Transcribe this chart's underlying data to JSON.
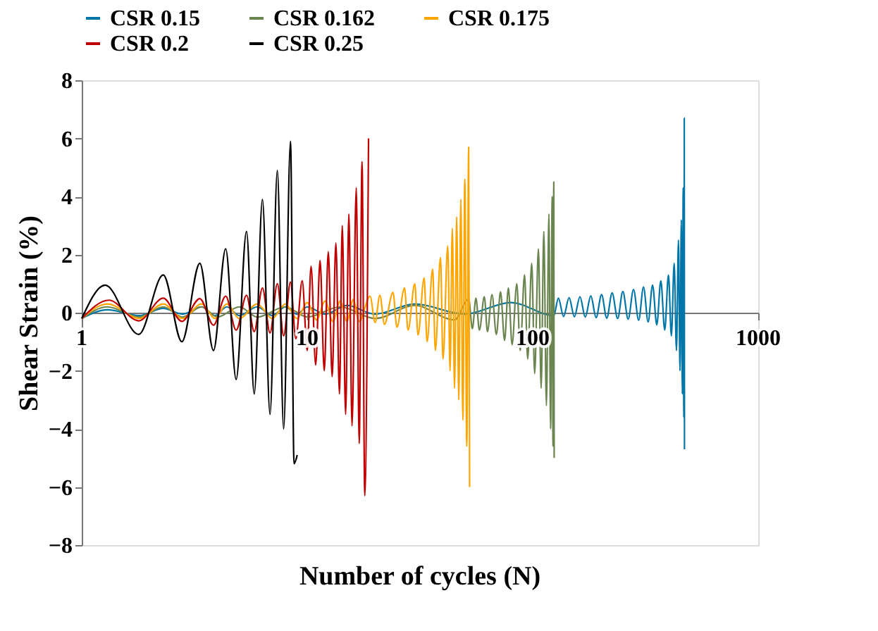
{
  "chart_data": {
    "type": "line",
    "xlabel": "Number of cycles (N)",
    "ylabel": "Shear Strain (%)",
    "log": "x",
    "legend": "top",
    "xlim": [
      1,
      1000
    ],
    "xticks": [
      1,
      10,
      100,
      1000
    ],
    "ylim": [
      -8,
      8
    ],
    "yticks": [
      -8,
      -6,
      -4,
      -2,
      0,
      2,
      4,
      6,
      8
    ],
    "series": [
      {
        "name": "CSR 0.15",
        "color": "#0076a8",
        "x": [
          1,
          1.3,
          1.8,
          2.3,
          2.8,
          3.4,
          3.9,
          4.4,
          5,
          6,
          7,
          8,
          9,
          10,
          12,
          15,
          20,
          30,
          50,
          80,
          124,
          130,
          137,
          145,
          153,
          162,
          171,
          181,
          191,
          202,
          213,
          225,
          238,
          251,
          265,
          280,
          295,
          310,
          325,
          340,
          355,
          370,
          385,
          400,
          412,
          424,
          434,
          443,
          450,
          456,
          461,
          465,
          468,
          470,
          471
        ],
        "values": [
          -0.2,
          0.1,
          -0.1,
          0.15,
          -0.05,
          0.2,
          -0.1,
          0.2,
          -0.1,
          0.2,
          -0.1,
          0.2,
          -0.05,
          0.2,
          -0.05,
          0.25,
          -0.05,
          0.3,
          -0.05,
          0.35,
          -0.1,
          0.5,
          -0.13,
          0.52,
          -0.14,
          0.55,
          -0.15,
          0.58,
          -0.17,
          0.62,
          -0.19,
          0.68,
          -0.2,
          0.73,
          -0.22,
          0.8,
          -0.26,
          0.88,
          -0.32,
          0.95,
          -0.42,
          1.1,
          -0.6,
          1.3,
          -0.8,
          1.7,
          -1.3,
          2.5,
          -2.0,
          3.2,
          -2.8,
          4.3,
          -3.6,
          6.7,
          -4.7
        ]
      },
      {
        "name": "CSR 0.162",
        "color": "#6b8550",
        "x": [
          1,
          1.3,
          1.8,
          2.3,
          2.8,
          3.4,
          4,
          5,
          6,
          8,
          10,
          14,
          20,
          30,
          45,
          52,
          54,
          56,
          58,
          61,
          63,
          66,
          69,
          72,
          75,
          78,
          81,
          85,
          88,
          92,
          95,
          99,
          102,
          106,
          109,
          112,
          115,
          118,
          120,
          122,
          123,
          124,
          124.5
        ],
        "values": [
          -0.2,
          0.2,
          -0.15,
          0.2,
          -0.15,
          0.2,
          -0.15,
          0.2,
          -0.15,
          0.2,
          -0.15,
          0.2,
          -0.2,
          0.25,
          -0.25,
          0.47,
          -0.55,
          0.5,
          -0.6,
          0.55,
          -0.65,
          0.62,
          -0.75,
          0.72,
          -0.95,
          0.85,
          -1.1,
          1.0,
          -1.3,
          1.3,
          -1.6,
          1.7,
          -2.1,
          2.2,
          -2.6,
          2.8,
          -3.2,
          3.4,
          -4.0,
          4.0,
          -4.6,
          4.5,
          -5.0
        ]
      },
      {
        "name": "CSR 0.175",
        "color": "#ffa500",
        "x": [
          1,
          1.3,
          1.8,
          2.3,
          2.8,
          3.4,
          3.9,
          4.4,
          5,
          6,
          7,
          8,
          9,
          10,
          11,
          12,
          13,
          14,
          15,
          16,
          17,
          19,
          20,
          21,
          22,
          24,
          25,
          27,
          28,
          30,
          31,
          33,
          34,
          36,
          37,
          39,
          40,
          42,
          43,
          44,
          45,
          46,
          47,
          48,
          49,
          50,
          51,
          52,
          52.5
        ],
        "values": [
          -0.2,
          0.3,
          -0.2,
          0.3,
          -0.2,
          0.3,
          -0.2,
          0.3,
          -0.2,
          0.3,
          -0.2,
          0.3,
          -0.2,
          0.35,
          -0.25,
          0.4,
          -0.3,
          0.4,
          -0.3,
          0.45,
          -0.3,
          0.57,
          -0.34,
          0.6,
          -0.4,
          0.7,
          -0.5,
          0.85,
          -0.6,
          1.0,
          -0.77,
          1.2,
          -1.0,
          1.5,
          -1.3,
          1.9,
          -1.6,
          2.3,
          -2.0,
          2.9,
          -2.6,
          3.3,
          -3.0,
          3.9,
          -3.7,
          4.6,
          -4.6,
          5.7,
          -6.0
        ]
      },
      {
        "name": "CSR 0.2",
        "color": "#c00000",
        "x": [
          1,
          1.32,
          1.79,
          2.3,
          2.78,
          3.34,
          3.84,
          4.35,
          4.84,
          5.38,
          5.82,
          6.33,
          6.84,
          7.37,
          7.86,
          8.43,
          8.9,
          9.5,
          10,
          10.4,
          10.9,
          11.4,
          11.9,
          12.4,
          12.9,
          13.4,
          13.9,
          14.3,
          14.8,
          15.3,
          15.8,
          16.5,
          17,
          17.5,
          18,
          18.7
        ],
        "values": [
          -0.2,
          0.43,
          -0.28,
          0.5,
          -0.3,
          0.48,
          -0.43,
          0.57,
          -0.6,
          0.6,
          -0.65,
          0.85,
          -0.7,
          1.0,
          -0.8,
          1.06,
          -0.9,
          1.1,
          -1.3,
          1.6,
          -1.8,
          1.8,
          -2.0,
          2.1,
          -2.2,
          2.4,
          -2.8,
          3.0,
          -3.5,
          3.4,
          -3.9,
          4.3,
          -4.5,
          5.2,
          -6.3,
          6.0
        ]
      },
      {
        "name": "CSR 0.25",
        "color": "#000000",
        "x": [
          1,
          1.27,
          1.79,
          2.3,
          2.78,
          3.34,
          3.84,
          4.35,
          4.84,
          5.38,
          5.82,
          6.33,
          6.84,
          7.37,
          7.86,
          8.43,
          8.74,
          9.03
        ],
        "values": [
          -0.2,
          0.95,
          -0.75,
          1.3,
          -1.0,
          1.7,
          -1.3,
          2.2,
          -2.3,
          2.8,
          -2.8,
          3.9,
          -3.5,
          4.9,
          -4.0,
          5.9,
          -5.2,
          -4.9
        ]
      }
    ]
  }
}
